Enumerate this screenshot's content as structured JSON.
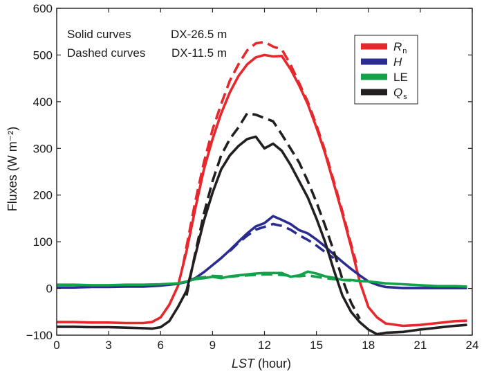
{
  "chart_data": {
    "type": "line",
    "title": "",
    "xlabel_italic": "LST",
    "xlabel_rest": " (hour)",
    "ylabel": "Fluxes (W m⁻²)",
    "xlim": [
      0,
      24
    ],
    "ylim": [
      -100,
      600
    ],
    "xticks": [
      0,
      3,
      6,
      9,
      12,
      15,
      18,
      21,
      24
    ],
    "yticks": [
      -100,
      0,
      100,
      200,
      300,
      400,
      500,
      600
    ],
    "ytick_labels": [
      "−100",
      "0",
      "100",
      "200",
      "300",
      "400",
      "500",
      "600"
    ],
    "annotations": {
      "solid_label": "Solid curves",
      "solid_site": "DX-26.5 m",
      "dashed_label": "Dashed curves",
      "dashed_site": "DX-11.5 m"
    },
    "legend": [
      {
        "key": "Rn",
        "main": "R",
        "sub": "n",
        "color": "#e8272c"
      },
      {
        "key": "H",
        "main": "H",
        "sub": "",
        "color": "#2a2d8f"
      },
      {
        "key": "LE",
        "main": "LE",
        "sub": "",
        "color": "#11a24a",
        "plain": true
      },
      {
        "key": "Qs",
        "main": "Q",
        "sub": "s",
        "color": "#231f20"
      }
    ],
    "series": [
      {
        "name": "Rn",
        "site": "DX-26.5 m",
        "style": "solid",
        "color": "#e8272c",
        "x": [
          0,
          1,
          2,
          3,
          4,
          5,
          5.5,
          6,
          6.5,
          7,
          7.5,
          8,
          8.5,
          9,
          9.5,
          10,
          10.5,
          11,
          11.5,
          12,
          12.5,
          13,
          13.5,
          14,
          14.5,
          15,
          15.5,
          16,
          16.5,
          17,
          17.5,
          18,
          18.5,
          19,
          20,
          21,
          22,
          23,
          23.7
        ],
        "y": [
          -72,
          -72,
          -73,
          -73,
          -74,
          -74,
          -72,
          -62,
          -35,
          5,
          80,
          170,
          255,
          320,
          375,
          420,
          455,
          480,
          495,
          500,
          497,
          498,
          470,
          435,
          395,
          345,
          290,
          225,
          160,
          90,
          15,
          -40,
          -62,
          -75,
          -80,
          -78,
          -74,
          -70,
          -69
        ]
      },
      {
        "name": "Rn",
        "site": "DX-11.5 m",
        "style": "dashed",
        "color": "#e8272c",
        "x": [
          7.3,
          7.5,
          8,
          8.5,
          9,
          9.5,
          10,
          10.5,
          11,
          11.5,
          12,
          12.5,
          13,
          13.5,
          14,
          14.5,
          15,
          15.5,
          16,
          16.5,
          17,
          17.3
        ],
        "y": [
          50,
          90,
          185,
          270,
          340,
          395,
          445,
          480,
          510,
          525,
          528,
          518,
          512,
          480,
          440,
          400,
          350,
          295,
          230,
          165,
          95,
          55
        ]
      },
      {
        "name": "H",
        "site": "DX-26.5 m",
        "style": "solid",
        "color": "#2a2d8f",
        "x": [
          0,
          1,
          2,
          3,
          4,
          5,
          6,
          6.5,
          7,
          7.5,
          8,
          8.5,
          9,
          9.5,
          10,
          10.5,
          11,
          11.5,
          12,
          12.5,
          13,
          13.5,
          14,
          14.5,
          15,
          15.5,
          16,
          16.5,
          17,
          17.5,
          18,
          18.5,
          19,
          20,
          21,
          22,
          23,
          23.7
        ],
        "y": [
          2,
          2,
          3,
          3,
          4,
          4,
          6,
          8,
          10,
          14,
          22,
          35,
          50,
          65,
          82,
          100,
          118,
          133,
          140,
          155,
          147,
          138,
          125,
          118,
          105,
          90,
          73,
          57,
          42,
          28,
          15,
          8,
          3,
          1,
          1,
          1,
          1,
          1
        ]
      },
      {
        "name": "H",
        "site": "DX-11.5 m",
        "style": "dashed",
        "color": "#2a2d8f",
        "x": [
          10,
          10.5,
          11,
          11.5,
          12,
          12.5,
          13,
          13.5,
          14,
          14.5,
          15,
          15.5,
          16
        ],
        "y": [
          80,
          98,
          113,
          126,
          132,
          138,
          134,
          126,
          114,
          104,
          92,
          78,
          65
        ]
      },
      {
        "name": "LE",
        "site": "DX-26.5 m",
        "style": "solid",
        "color": "#11a24a",
        "x": [
          0,
          1,
          2,
          3,
          4,
          5,
          6,
          7,
          7.5,
          8,
          8.5,
          9,
          9.5,
          10,
          10.5,
          11,
          11.5,
          12,
          12.5,
          13,
          13.5,
          14,
          14.5,
          15,
          15.5,
          16,
          16.5,
          17,
          17.5,
          18,
          18.5,
          19,
          20,
          21,
          22,
          23,
          23.7
        ],
        "y": [
          8,
          8,
          7,
          7,
          8,
          8,
          9,
          11,
          15,
          20,
          22,
          25,
          22,
          26,
          28,
          30,
          32,
          33,
          33,
          33,
          25,
          28,
          36,
          32,
          26,
          23,
          18,
          18,
          16,
          15,
          13,
          11,
          9,
          7,
          5,
          5,
          4
        ]
      },
      {
        "name": "LE",
        "site": "DX-11.5 m",
        "style": "dashed",
        "color": "#11a24a",
        "x": [
          8,
          8.5,
          9,
          9.5,
          10,
          10.5,
          11,
          11.5,
          12,
          12.5,
          13,
          13.5,
          14,
          14.5,
          15,
          15.5,
          16,
          16.5,
          17
        ],
        "y": [
          22,
          24,
          27,
          26,
          25,
          27,
          28,
          29,
          30,
          30,
          29,
          27,
          26,
          28,
          25,
          22,
          20,
          18,
          17
        ]
      },
      {
        "name": "Qs",
        "site": "DX-26.5 m",
        "style": "solid",
        "color": "#231f20",
        "x": [
          0,
          1,
          2,
          3,
          4,
          5,
          5.5,
          6,
          6.5,
          7,
          7.5,
          8,
          8.5,
          9,
          9.5,
          10,
          10.5,
          11,
          11.5,
          12,
          12.5,
          13,
          13.5,
          14,
          14.5,
          15,
          15.5,
          16,
          16.5,
          17,
          17.5,
          18,
          18.5,
          19,
          20,
          21,
          22,
          23,
          23.7
        ],
        "y": [
          -82,
          -82,
          -83,
          -83,
          -84,
          -85,
          -86,
          -83,
          -70,
          -40,
          -5,
          70,
          145,
          205,
          255,
          285,
          305,
          320,
          325,
          300,
          310,
          295,
          265,
          230,
          195,
          150,
          100,
          40,
          -15,
          -50,
          -72,
          -88,
          -98,
          -95,
          -93,
          -88,
          -84,
          -80,
          -78
        ]
      },
      {
        "name": "Qs",
        "site": "DX-11.5 m",
        "style": "dashed",
        "color": "#231f20",
        "x": [
          7.5,
          8,
          8.5,
          9,
          9.5,
          10,
          10.5,
          11,
          11.5,
          12,
          12.5,
          13,
          13.5,
          14,
          14.5,
          15,
          15.5,
          16,
          16.5,
          17,
          17.5
        ],
        "y": [
          -15,
          75,
          160,
          230,
          285,
          320,
          345,
          375,
          372,
          365,
          358,
          330,
          300,
          270,
          230,
          185,
          135,
          80,
          20,
          -30,
          -65
        ]
      }
    ]
  }
}
